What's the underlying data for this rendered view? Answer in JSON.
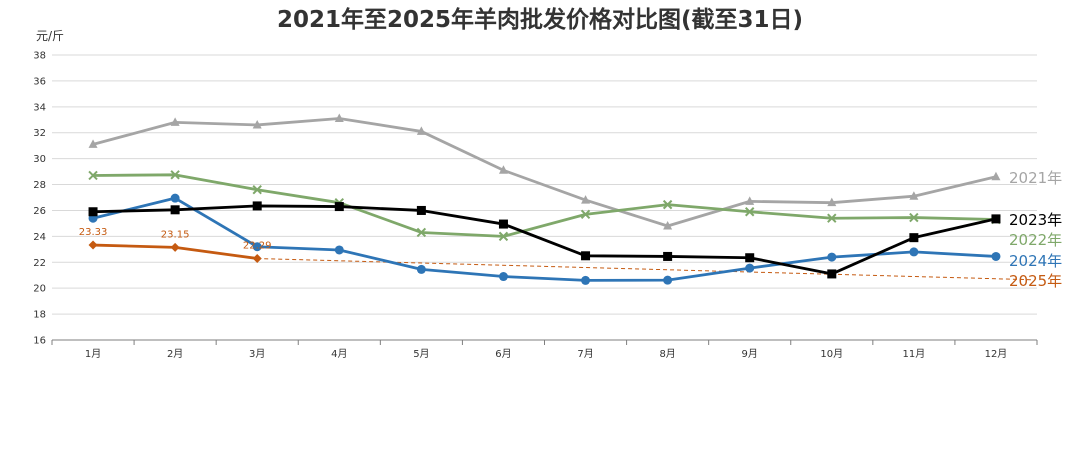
{
  "chart_data": {
    "type": "line",
    "title": "2021年至2025年羊肉批发价格对比图(截至31日)",
    "ylabel": "元/斤",
    "ylim": [
      16,
      38
    ],
    "yticks": [
      "16",
      "18",
      "20",
      "22",
      "24",
      "26",
      "28",
      "30",
      "32",
      "34",
      "36",
      "38"
    ],
    "categories": [
      "1月",
      "2月",
      "3月",
      "4月",
      "5月",
      "6月",
      "7月",
      "8月",
      "9月",
      "10月",
      "11月",
      "12月"
    ],
    "grid": true,
    "legend": "right (series labels at line ends)",
    "series": [
      {
        "name": "2021年",
        "color": "#A5A5A5",
        "marker": "triangle",
        "values": [
          31.1,
          32.8,
          32.6,
          33.1,
          32.1,
          29.1,
          26.8,
          24.8,
          26.7,
          26.6,
          27.1,
          28.6
        ]
      },
      {
        "name": "2022年",
        "color": "#7FA86A",
        "marker": "x",
        "values": [
          28.7,
          28.75,
          27.6,
          26.6,
          24.3,
          24.0,
          25.7,
          26.45,
          25.9,
          25.4,
          25.45,
          25.3
        ]
      },
      {
        "name": "2023年",
        "color": "#000000",
        "marker": "square",
        "values": [
          25.9,
          26.05,
          26.35,
          26.3,
          26.0,
          24.95,
          22.5,
          22.45,
          22.35,
          21.1,
          23.9,
          25.35
        ]
      },
      {
        "name": "2024年",
        "color": "#2E75B6",
        "marker": "circle",
        "values": [
          25.4,
          26.95,
          23.2,
          22.95,
          21.45,
          20.9,
          20.6,
          20.62,
          21.55,
          22.4,
          22.8,
          22.45
        ]
      },
      {
        "name": "2025年",
        "color": "#C55A11",
        "marker": "diamond",
        "values": [
          23.33,
          23.15,
          22.29,
          null,
          null,
          null,
          null,
          null,
          null,
          null,
          null,
          null
        ],
        "data_labels": [
          "23.33",
          "23.15",
          "22.29"
        ]
      }
    ],
    "trendline": {
      "series": "2025年",
      "style": "dashed",
      "color": "#C55A11",
      "end_value": 20.65
    }
  }
}
